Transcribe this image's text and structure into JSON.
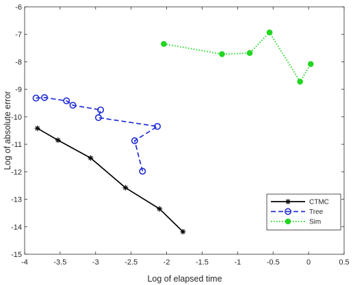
{
  "chart_data": {
    "type": "line",
    "title": "",
    "xlabel": "Log of elapsed time",
    "ylabel": "Log of absolute error",
    "xlim": [
      -4,
      0.5
    ],
    "ylim": [
      -15,
      -6
    ],
    "xticks": [
      -4,
      -3.5,
      -3,
      -2.5,
      -2,
      -1.5,
      -1,
      -0.5,
      0,
      0.5
    ],
    "xtick_labels": [
      "-4",
      "-3.5",
      "-3",
      "-2.5",
      "-2",
      "-1.5",
      "-1",
      "-0.5",
      "0",
      "0.5"
    ],
    "yticks": [
      -15,
      -14,
      -13,
      -12,
      -11,
      -10,
      -9,
      -8,
      -7,
      -6
    ],
    "ytick_labels": [
      "-15",
      "-14",
      "-13",
      "-12",
      "-11",
      "-10",
      "-9",
      "-8",
      "-7",
      "-6"
    ],
    "grid": false,
    "legend_position": "bottom-right",
    "series": [
      {
        "name": "CTMC",
        "color": "#000000",
        "line_style": "solid",
        "marker": "asterisk",
        "x": [
          -3.82,
          -3.53,
          -3.07,
          -2.58,
          -2.1,
          -1.77
        ],
        "y": [
          -10.42,
          -10.85,
          -11.5,
          -12.58,
          -13.35,
          -14.18
        ]
      },
      {
        "name": "Tree",
        "color": "#1f2bd6",
        "line_style": "dashed",
        "marker": "circle",
        "x": [
          -3.84,
          -3.72,
          -3.41,
          -3.32,
          -2.93,
          -2.96,
          -2.13,
          -2.45,
          -2.34
        ],
        "y": [
          -9.32,
          -9.3,
          -9.42,
          -9.58,
          -9.75,
          -10.03,
          -10.35,
          -10.87,
          -11.98
        ]
      },
      {
        "name": "Sim",
        "color": "#22d622",
        "line_style": "dotted",
        "marker": "circle-filled",
        "x": [
          -2.04,
          -1.22,
          -0.83,
          -0.55,
          -0.12,
          0.03
        ],
        "y": [
          -7.35,
          -7.72,
          -7.68,
          -6.93,
          -8.72,
          -8.08
        ]
      }
    ]
  }
}
